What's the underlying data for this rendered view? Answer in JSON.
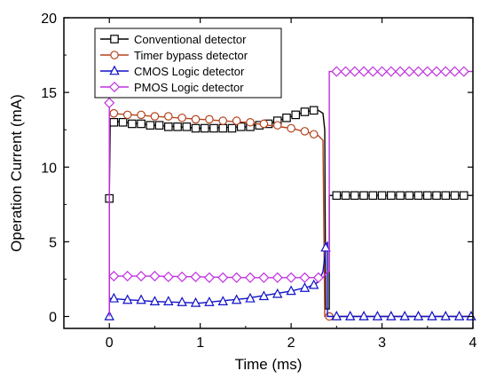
{
  "chart_data": {
    "type": "line",
    "xlabel": "Time (ms)",
    "ylabel": "Operation Current (mA)",
    "xlim": [
      -0.5,
      4
    ],
    "ylim": [
      -0.8,
      20
    ],
    "xticks": [
      0,
      1,
      2,
      3,
      4
    ],
    "yticks": [
      0,
      5,
      10,
      15,
      20
    ],
    "grid": false,
    "legend_position": "top-left",
    "series": [
      {
        "name": "Conventional detector",
        "color": "#000000",
        "marker": "square",
        "points": [
          [
            0,
            0
          ],
          [
            0,
            7.9
          ],
          [
            0.01,
            13.1
          ],
          [
            0.5,
            12.8
          ],
          [
            1.0,
            12.6
          ],
          [
            1.5,
            12.7
          ],
          [
            1.8,
            13.0
          ],
          [
            2.0,
            13.4
          ],
          [
            2.1,
            13.6
          ],
          [
            2.2,
            13.75
          ],
          [
            2.3,
            13.8
          ],
          [
            2.35,
            13.6
          ],
          [
            2.37,
            12.5
          ],
          [
            2.38,
            0.5
          ],
          [
            2.42,
            0.5
          ],
          [
            2.42,
            8.1
          ],
          [
            4.0,
            8.1
          ]
        ],
        "markers": [
          [
            0,
            7.9
          ],
          [
            0.05,
            13.0
          ],
          [
            0.15,
            13.0
          ],
          [
            0.25,
            12.9
          ],
          [
            0.35,
            12.9
          ],
          [
            0.45,
            12.8
          ],
          [
            0.55,
            12.8
          ],
          [
            0.65,
            12.7
          ],
          [
            0.75,
            12.7
          ],
          [
            0.85,
            12.7
          ],
          [
            0.95,
            12.6
          ],
          [
            1.05,
            12.6
          ],
          [
            1.15,
            12.6
          ],
          [
            1.25,
            12.6
          ],
          [
            1.35,
            12.6
          ],
          [
            1.45,
            12.7
          ],
          [
            1.55,
            12.7
          ],
          [
            1.65,
            12.8
          ],
          [
            1.75,
            12.9
          ],
          [
            1.85,
            13.1
          ],
          [
            1.95,
            13.3
          ],
          [
            2.05,
            13.5
          ],
          [
            2.15,
            13.7
          ],
          [
            2.25,
            13.8
          ],
          [
            2.5,
            8.1
          ],
          [
            2.6,
            8.1
          ],
          [
            2.7,
            8.1
          ],
          [
            2.8,
            8.1
          ],
          [
            2.9,
            8.1
          ],
          [
            3.0,
            8.1
          ],
          [
            3.1,
            8.1
          ],
          [
            3.2,
            8.1
          ],
          [
            3.3,
            8.1
          ],
          [
            3.4,
            8.1
          ],
          [
            3.5,
            8.1
          ],
          [
            3.6,
            8.1
          ],
          [
            3.7,
            8.1
          ],
          [
            3.8,
            8.1
          ],
          [
            3.9,
            8.1
          ]
        ]
      },
      {
        "name": "Timer bypass detector",
        "color": "#b5441e",
        "marker": "circle",
        "points": [
          [
            0,
            0
          ],
          [
            0,
            13.6
          ],
          [
            0.5,
            13.4
          ],
          [
            1.0,
            13.2
          ],
          [
            1.5,
            13.0
          ],
          [
            2.0,
            12.6
          ],
          [
            2.2,
            12.3
          ],
          [
            2.3,
            12.1
          ],
          [
            2.35,
            11.8
          ],
          [
            2.37,
            0
          ],
          [
            4.0,
            0
          ]
        ],
        "markers": [
          [
            0.05,
            13.6
          ],
          [
            0.2,
            13.5
          ],
          [
            0.35,
            13.5
          ],
          [
            0.5,
            13.4
          ],
          [
            0.65,
            13.4
          ],
          [
            0.8,
            13.3
          ],
          [
            0.95,
            13.2
          ],
          [
            1.1,
            13.2
          ],
          [
            1.25,
            13.1
          ],
          [
            1.4,
            13.1
          ],
          [
            1.55,
            13.0
          ],
          [
            1.7,
            12.9
          ],
          [
            1.85,
            12.8
          ],
          [
            2.0,
            12.6
          ],
          [
            2.15,
            12.4
          ],
          [
            2.25,
            12.2
          ],
          [
            2.42,
            0
          ]
        ]
      },
      {
        "name": "CMOS Logic detector",
        "color": "#1010c8",
        "marker": "triangle",
        "points": [
          [
            0,
            0
          ],
          [
            0,
            1.2
          ],
          [
            0.5,
            1.0
          ],
          [
            1.0,
            0.9
          ],
          [
            1.5,
            1.2
          ],
          [
            1.8,
            1.5
          ],
          [
            2.0,
            1.7
          ],
          [
            2.2,
            2.0
          ],
          [
            2.3,
            2.3
          ],
          [
            2.35,
            3.0
          ],
          [
            2.38,
            4.5
          ],
          [
            2.4,
            5.0
          ],
          [
            2.4,
            0
          ],
          [
            4.0,
            0
          ]
        ],
        "markers": [
          [
            0,
            0
          ],
          [
            0.05,
            1.2
          ],
          [
            0.2,
            1.1
          ],
          [
            0.35,
            1.1
          ],
          [
            0.5,
            1.0
          ],
          [
            0.65,
            1.0
          ],
          [
            0.8,
            0.95
          ],
          [
            0.95,
            0.9
          ],
          [
            1.1,
            0.95
          ],
          [
            1.25,
            1.0
          ],
          [
            1.4,
            1.1
          ],
          [
            1.55,
            1.2
          ],
          [
            1.7,
            1.35
          ],
          [
            1.85,
            1.5
          ],
          [
            2.0,
            1.7
          ],
          [
            2.15,
            1.9
          ],
          [
            2.25,
            2.1
          ],
          [
            2.38,
            4.6
          ],
          [
            2.5,
            0
          ],
          [
            2.65,
            0
          ],
          [
            2.8,
            0
          ],
          [
            2.95,
            0
          ],
          [
            3.1,
            0
          ],
          [
            3.25,
            0
          ],
          [
            3.4,
            0
          ],
          [
            3.55,
            0
          ],
          [
            3.7,
            0
          ],
          [
            3.85,
            0
          ],
          [
            3.98,
            0
          ]
        ]
      },
      {
        "name": "PMOS Logic detector",
        "color": "#c030e0",
        "marker": "diamond",
        "points": [
          [
            0,
            0
          ],
          [
            0,
            14.3
          ],
          [
            0.0,
            2.7
          ],
          [
            0.5,
            2.7
          ],
          [
            1.0,
            2.65
          ],
          [
            1.5,
            2.6
          ],
          [
            2.0,
            2.6
          ],
          [
            2.35,
            2.6
          ],
          [
            2.4,
            3.0
          ],
          [
            2.42,
            3.0
          ],
          [
            2.42,
            16.4
          ],
          [
            4.0,
            16.4
          ]
        ],
        "markers": [
          [
            0,
            14.3
          ],
          [
            0.05,
            2.7
          ],
          [
            0.2,
            2.7
          ],
          [
            0.35,
            2.7
          ],
          [
            0.5,
            2.7
          ],
          [
            0.65,
            2.65
          ],
          [
            0.8,
            2.65
          ],
          [
            0.95,
            2.65
          ],
          [
            1.1,
            2.6
          ],
          [
            1.25,
            2.6
          ],
          [
            1.4,
            2.6
          ],
          [
            1.55,
            2.6
          ],
          [
            1.7,
            2.6
          ],
          [
            1.85,
            2.6
          ],
          [
            2.0,
            2.6
          ],
          [
            2.15,
            2.6
          ],
          [
            2.3,
            2.6
          ],
          [
            2.5,
            16.4
          ],
          [
            2.6,
            16.4
          ],
          [
            2.7,
            16.4
          ],
          [
            2.8,
            16.4
          ],
          [
            2.9,
            16.4
          ],
          [
            3.0,
            16.4
          ],
          [
            3.1,
            16.4
          ],
          [
            3.2,
            16.4
          ],
          [
            3.3,
            16.4
          ],
          [
            3.4,
            16.4
          ],
          [
            3.5,
            16.4
          ],
          [
            3.6,
            16.4
          ],
          [
            3.7,
            16.4
          ],
          [
            3.8,
            16.4
          ],
          [
            3.9,
            16.4
          ]
        ]
      }
    ]
  }
}
